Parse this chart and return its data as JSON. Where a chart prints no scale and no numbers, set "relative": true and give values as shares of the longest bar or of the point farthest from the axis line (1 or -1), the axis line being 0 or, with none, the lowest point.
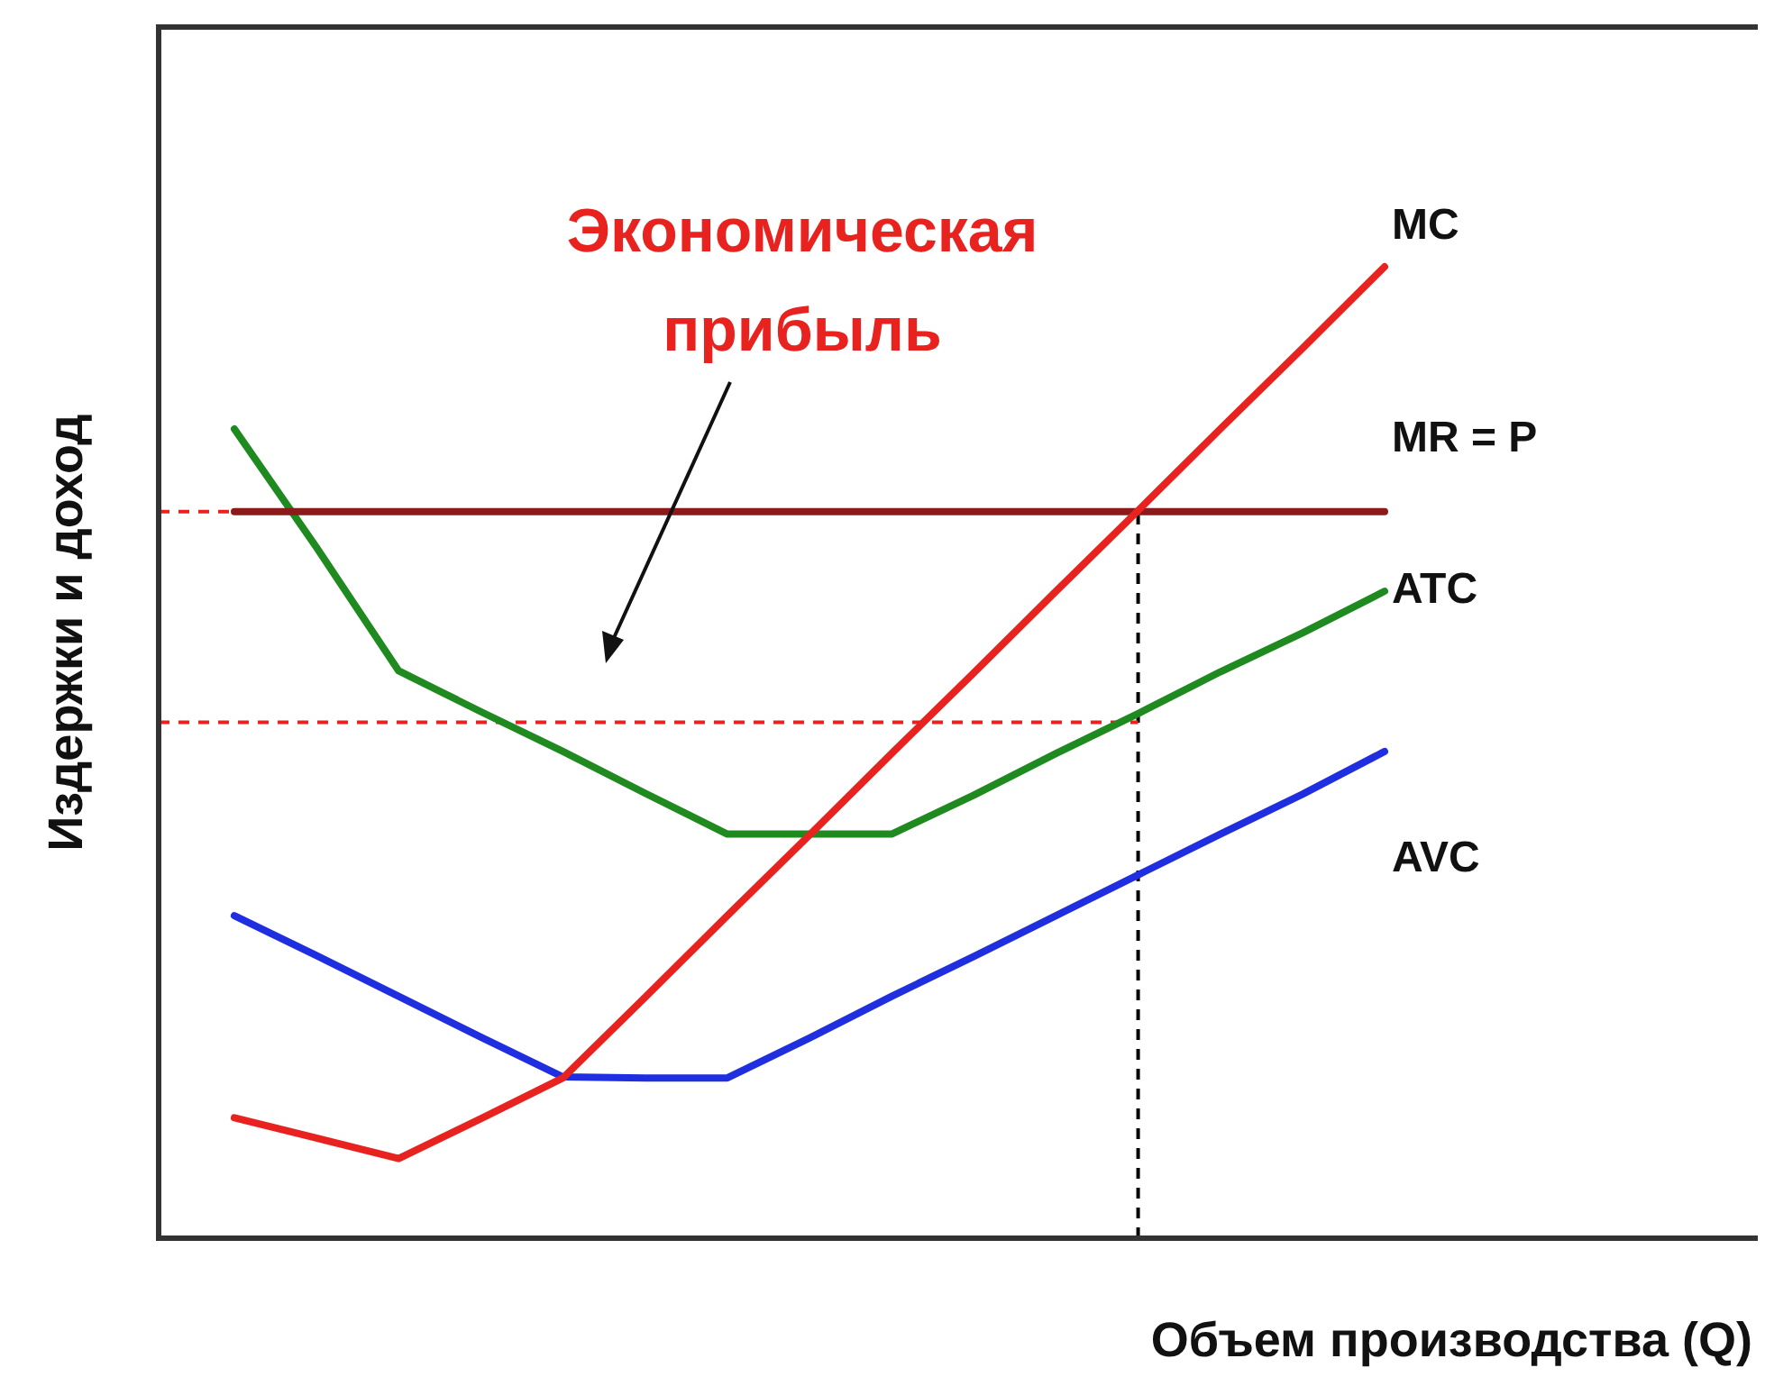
{
  "chart_data": {
    "type": "line",
    "relative": true,
    "xlabel": "Объем производства (Q)",
    "ylabel": "Издержки и доход",
    "legend": false,
    "categories": [
      null,
      null,
      null,
      null,
      null,
      null,
      null,
      null,
      null,
      null,
      null,
      null,
      null,
      null,
      null
    ],
    "series": [
      {
        "name": "MC",
        "color": "#e8231f",
        "values": [
          0.124,
          0.103,
          0.082,
          0.123,
          0.165,
          0.248,
          0.332,
          0.415,
          0.499,
          0.582,
          0.666,
          0.749,
          0.833,
          0.916,
          1
        ]
      },
      {
        "name": "MR = P",
        "color": "#8b1a1a",
        "values": [
          0.748,
          0.748,
          0.748,
          0.748,
          0.748,
          0.748,
          0.748,
          0.748,
          0.748,
          0.748,
          0.748,
          0.748,
          0.748,
          0.748,
          0.748
        ]
      },
      {
        "name": "ATC",
        "color": "#1f8a1f",
        "values": [
          0.833,
          0.711,
          0.584,
          0.542,
          0.501,
          0.458,
          0.416,
          0.416,
          0.416,
          0.456,
          0.499,
          0.54,
          0.583,
          0.623,
          0.666
        ]
      },
      {
        "name": "AVC",
        "color": "#1f2fe0",
        "values": [
          0.332,
          0.291,
          0.249,
          0.207,
          0.166,
          0.165,
          0.165,
          0.206,
          0.249,
          0.29,
          0.332,
          0.374,
          0.416,
          0.457,
          0.501
        ]
      }
    ],
    "ref_lines": [
      {
        "axis": "y",
        "value": 0.748,
        "color": "#e8231f",
        "line_style": "dashed"
      },
      {
        "axis": "y",
        "value": 0.531,
        "color": "#e8231f",
        "line_style": "dashed"
      }
    ],
    "annotations": [
      "Экономическая прибыль"
    ],
    "line_style": "solid",
    "marker": "none"
  }
}
